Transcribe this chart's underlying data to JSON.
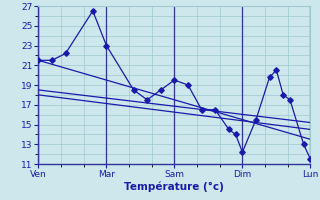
{
  "xlabel": "Température (°c)",
  "bg_color": "#cce8ec",
  "grid_color": "#9fc8d0",
  "line_color": "#1a1aaa",
  "vline_color": "#333399",
  "ylim": [
    11,
    27
  ],
  "yticks": [
    11,
    13,
    15,
    17,
    19,
    21,
    23,
    25,
    27
  ],
  "day_positions": [
    0,
    60,
    120,
    180,
    240
  ],
  "day_labels": [
    "Ven",
    "Mar",
    "Sam",
    "Dim",
    "Lun"
  ],
  "xlim": [
    0,
    240
  ],
  "zigzag_x": [
    0,
    12,
    24,
    48,
    60,
    84,
    96,
    108,
    120,
    132,
    144,
    156,
    168,
    174,
    180,
    192,
    204,
    210,
    216,
    222,
    234,
    240
  ],
  "zigzag_y": [
    21.5,
    21.5,
    22.2,
    26.5,
    23.0,
    18.5,
    17.5,
    18.5,
    19.5,
    19.0,
    16.5,
    16.5,
    14.5,
    14.0,
    12.2,
    15.5,
    19.8,
    20.5,
    18.0,
    17.5,
    13.0,
    11.5
  ],
  "trend1_x": [
    0,
    240
  ],
  "trend1_y": [
    21.5,
    13.5
  ],
  "trend2_x": [
    0,
    240
  ],
  "trend2_y": [
    18.5,
    15.2
  ],
  "trend3_x": [
    0,
    240
  ],
  "trend3_y": [
    18.0,
    14.5
  ]
}
